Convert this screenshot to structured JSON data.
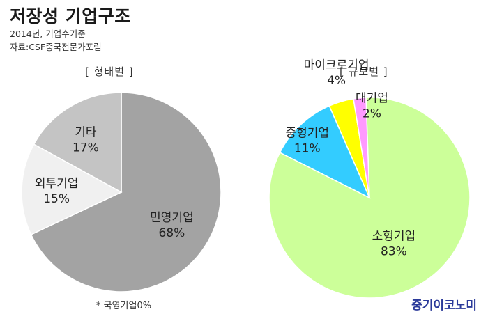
{
  "title": "저장성 기업구조",
  "subtitle_line1": "2014년, 기업수기준",
  "subtitle_line2": "자료:CSF중국전문가포럼",
  "footnote": "* 국영기업0%",
  "brand": "중기이코노미",
  "chart_data": [
    {
      "type": "pie",
      "title": "[ 형태별 ]",
      "slices": [
        {
          "label": "민영기업",
          "value_label": "68%",
          "value": 68,
          "color": "#a3a3a3"
        },
        {
          "label": "외투기업",
          "value_label": "15%",
          "value": 15,
          "color": "#f0f0f0"
        },
        {
          "label": "기타",
          "value_label": "17%",
          "value": 17,
          "color": "#c4c4c4"
        }
      ]
    },
    {
      "type": "pie",
      "title": "[ 규모별 ]",
      "slices": [
        {
          "label": "소형기업",
          "value_label": "83%",
          "value": 83,
          "color": "#ccff99"
        },
        {
          "label": "중형기업",
          "value_label": "11%",
          "value": 11,
          "color": "#33ccff"
        },
        {
          "label": "마이크로기업",
          "value_label": "4%",
          "value": 4,
          "color": "#ffff00"
        },
        {
          "label": "대기업",
          "value_label": "2%",
          "value": 2,
          "color": "#ff99ff"
        }
      ]
    }
  ]
}
